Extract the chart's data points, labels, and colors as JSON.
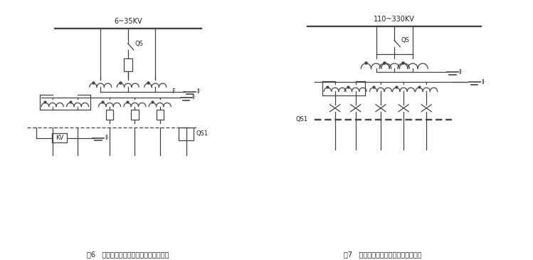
{
  "bg_color": "#ffffff",
  "line_color": "#444444",
  "text_color": "#222222",
  "fig_label6": "图6   非有效接地系统电压互感器接线分析",
  "fig_label7": "图7   有效接地系统电压互感器接线分析",
  "voltage_label6": "6~35KV",
  "voltage_label7": "110~330KV",
  "label_QS": "QS",
  "label_QS1": "QS1",
  "label_F": "F",
  "label_KV": "KV"
}
